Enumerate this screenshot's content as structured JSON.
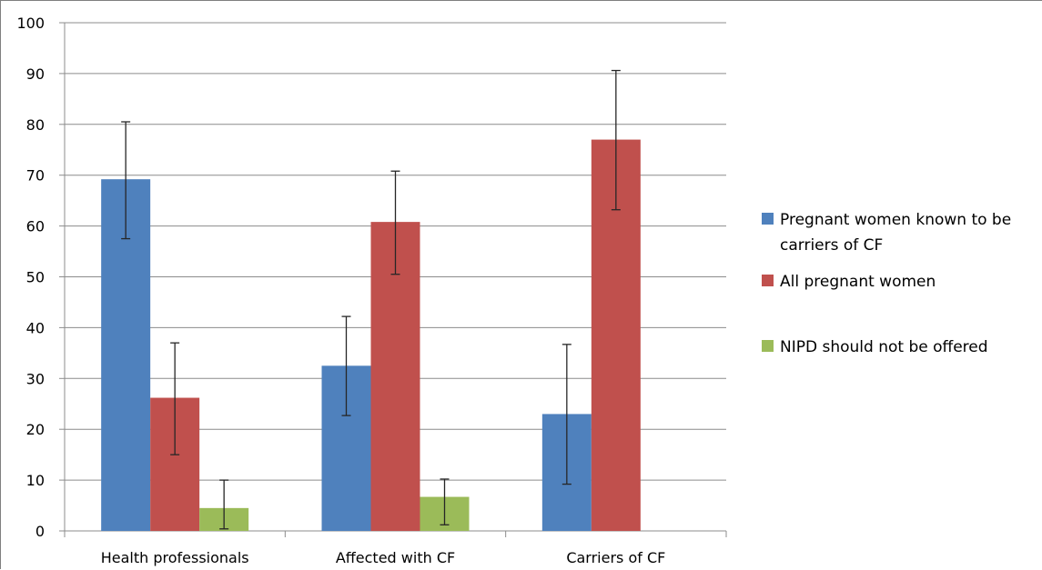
{
  "chart_data": {
    "type": "bar",
    "title": "",
    "xlabel": "",
    "ylabel": "",
    "ylim": [
      0,
      100
    ],
    "yticks": [
      0,
      10,
      20,
      30,
      40,
      50,
      60,
      70,
      80,
      90,
      100
    ],
    "grid": true,
    "legend_position": "right",
    "categories": [
      "Health professionals",
      "Affected with CF",
      "Carriers of CF"
    ],
    "series": [
      {
        "name": "Pregnant women known to be carriers of CF",
        "legend_lines": [
          "Pregnant women known to be",
          "carriers of CF"
        ],
        "color": "#4f81bd",
        "values": [
          69.2,
          32.5,
          23.0
        ],
        "error_low": [
          57.5,
          22.7,
          9.2
        ],
        "error_high": [
          80.5,
          42.2,
          36.7
        ]
      },
      {
        "name": "All pregnant women",
        "legend_lines": [
          "All pregnant women"
        ],
        "color": "#c0504d",
        "values": [
          26.2,
          60.8,
          77.0
        ],
        "error_low": [
          15.0,
          50.5,
          63.2
        ],
        "error_high": [
          37.0,
          70.8,
          90.6
        ]
      },
      {
        "name": "NIPD should not be offered",
        "legend_lines": [
          "NIPD should not be offered"
        ],
        "color": "#9bbb59",
        "values": [
          4.5,
          6.7,
          null
        ],
        "error_low": [
          0.4,
          1.2,
          null
        ],
        "error_high": [
          10.0,
          10.2,
          null
        ]
      }
    ]
  }
}
